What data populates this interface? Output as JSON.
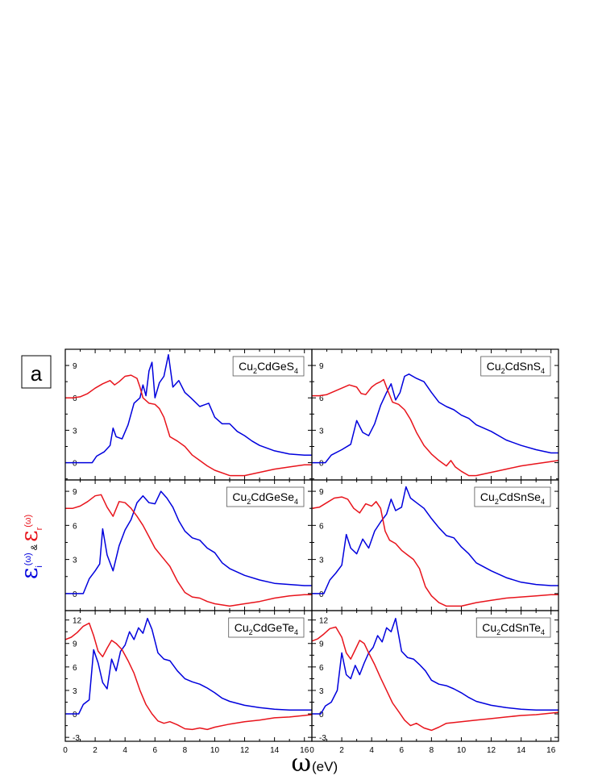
{
  "panel_letter": "a",
  "x_axis": {
    "symbol": "ω",
    "unit": "(eV)",
    "range": [
      0,
      16.5
    ],
    "ticks": [
      0,
      2,
      4,
      6,
      8,
      10,
      12,
      14,
      16
    ]
  },
  "y_axis": {
    "imag_symbol": "ε",
    "imag_sub": "i",
    "imag_arg": "(ω)",
    "joiner": "&",
    "real_symbol": "ε",
    "real_sub": "r",
    "real_arg": "(ω)"
  },
  "colors": {
    "imag": "#0000dd",
    "real": "#e8141c"
  },
  "chart_data": [
    {
      "type": "line",
      "material": {
        "prefix": "Cu",
        "sub1": "2",
        "mid": "CdGeS",
        "sub2": "4"
      },
      "ylim": [
        -1.6,
        10.5
      ],
      "yticks": [
        0,
        3,
        6,
        9
      ],
      "series": [
        {
          "key": "imag",
          "x": [
            0,
            1.8,
            2.1,
            2.6,
            3.0,
            3.2,
            3.4,
            3.8,
            4.2,
            4.6,
            5.0,
            5.2,
            5.4,
            5.6,
            5.8,
            6.0,
            6.3,
            6.6,
            6.9,
            7.2,
            7.6,
            8.0,
            8.4,
            9.0,
            9.6,
            10.0,
            10.5,
            11.0,
            11.5,
            12.0,
            12.5,
            13.0,
            14.0,
            15.0,
            16.0,
            16.5
          ],
          "y": [
            0,
            0,
            0.6,
            1.0,
            1.6,
            3.2,
            2.4,
            2.2,
            3.5,
            5.5,
            6.0,
            7.2,
            6.2,
            8.5,
            9.3,
            6.0,
            7.4,
            8.0,
            10.0,
            7.0,
            7.6,
            6.5,
            6.0,
            5.2,
            5.5,
            4.2,
            3.6,
            3.6,
            2.9,
            2.5,
            2.0,
            1.6,
            1.1,
            0.8,
            0.7,
            0.7
          ]
        },
        {
          "key": "real",
          "x": [
            0,
            0.5,
            1.0,
            1.5,
            2.0,
            2.5,
            3.0,
            3.3,
            3.6,
            4.0,
            4.4,
            4.8,
            5.0,
            5.2,
            5.6,
            6.0,
            6.3,
            6.6,
            7.0,
            7.5,
            8.0,
            8.5,
            9.0,
            9.5,
            10.0,
            11.0,
            12.0,
            13.0,
            14.0,
            15.0,
            16.0,
            16.5
          ],
          "y": [
            6.0,
            6.0,
            6.1,
            6.4,
            6.9,
            7.3,
            7.6,
            7.2,
            7.5,
            8.0,
            8.1,
            7.8,
            7.0,
            6.0,
            5.5,
            5.4,
            5.0,
            4.2,
            2.4,
            2.0,
            1.5,
            0.7,
            0.2,
            -0.3,
            -0.7,
            -1.2,
            -1.2,
            -0.9,
            -0.6,
            -0.4,
            -0.2,
            -0.2
          ]
        }
      ]
    },
    {
      "type": "line",
      "material": {
        "prefix": "Cu",
        "sub1": "2",
        "mid": "CdSnS",
        "sub2": "4"
      },
      "ylim": [
        -1.6,
        10.5
      ],
      "yticks": [
        0,
        3,
        6,
        9
      ],
      "series": [
        {
          "key": "imag",
          "x": [
            0,
            0.9,
            1.3,
            2.0,
            2.6,
            3.0,
            3.4,
            3.8,
            4.2,
            4.6,
            5.0,
            5.3,
            5.6,
            5.9,
            6.2,
            6.5,
            7.0,
            7.5,
            8.0,
            8.5,
            9.0,
            9.5,
            10.0,
            10.5,
            11.0,
            12.0,
            13.0,
            14.0,
            15.0,
            16.0,
            16.5
          ],
          "y": [
            0,
            0,
            0.7,
            1.2,
            1.7,
            3.9,
            2.8,
            2.5,
            3.6,
            5.3,
            6.5,
            7.3,
            5.8,
            6.5,
            8.0,
            8.2,
            7.8,
            7.5,
            6.5,
            5.6,
            5.2,
            4.9,
            4.4,
            4.1,
            3.5,
            2.9,
            2.1,
            1.6,
            1.2,
            0.9,
            0.9
          ]
        },
        {
          "key": "real",
          "x": [
            0,
            0.5,
            1.0,
            1.5,
            2.0,
            2.5,
            3.0,
            3.3,
            3.6,
            4.0,
            4.3,
            4.6,
            4.8,
            5.1,
            5.4,
            5.8,
            6.2,
            6.6,
            7.0,
            7.5,
            8.0,
            8.5,
            9.0,
            9.3,
            9.6,
            10.0,
            10.5,
            11.0,
            12.0,
            13.0,
            14.0,
            15.0,
            16.0,
            16.5
          ],
          "y": [
            6.2,
            6.2,
            6.3,
            6.6,
            6.9,
            7.2,
            7.0,
            6.4,
            6.3,
            7.0,
            7.3,
            7.5,
            7.7,
            6.6,
            5.6,
            5.4,
            4.9,
            4.0,
            2.8,
            1.6,
            0.8,
            0.2,
            -0.3,
            0.2,
            -0.4,
            -0.8,
            -1.2,
            -1.2,
            -0.9,
            -0.6,
            -0.3,
            -0.1,
            0.1,
            0.2
          ]
        }
      ]
    },
    {
      "type": "line",
      "material": {
        "prefix": "Cu",
        "sub1": "2",
        "mid": "CdGeSe",
        "sub2": "4"
      },
      "ylim": [
        -1.5,
        10.0
      ],
      "yticks": [
        0,
        3,
        6,
        9
      ],
      "series": [
        {
          "key": "imag",
          "x": [
            0,
            1.2,
            1.6,
            2.0,
            2.3,
            2.5,
            2.8,
            3.2,
            3.6,
            4.0,
            4.4,
            4.8,
            5.2,
            5.6,
            6.0,
            6.4,
            6.8,
            7.2,
            7.6,
            8.0,
            8.5,
            9.0,
            9.5,
            10.0,
            10.5,
            11.0,
            12.0,
            13.0,
            14.0,
            15.0,
            16.0,
            16.5
          ],
          "y": [
            0,
            0,
            1.3,
            2.0,
            2.6,
            5.7,
            3.4,
            2.0,
            4.2,
            5.6,
            6.5,
            8.0,
            8.6,
            8.0,
            7.9,
            9.0,
            8.4,
            7.6,
            6.4,
            5.5,
            4.9,
            4.7,
            4.0,
            3.6,
            2.7,
            2.2,
            1.6,
            1.2,
            0.9,
            0.8,
            0.7,
            0.7
          ]
        },
        {
          "key": "real",
          "x": [
            0,
            0.5,
            1.0,
            1.5,
            2.0,
            2.4,
            2.8,
            3.2,
            3.6,
            4.0,
            4.4,
            4.8,
            5.2,
            5.6,
            6.0,
            6.5,
            7.0,
            7.5,
            8.0,
            8.5,
            9.0,
            9.5,
            10.0,
            11.0,
            12.0,
            13.0,
            14.0,
            15.0,
            16.0,
            16.5
          ],
          "y": [
            7.5,
            7.5,
            7.7,
            8.1,
            8.6,
            8.7,
            7.6,
            6.8,
            8.1,
            8.0,
            7.5,
            6.8,
            6.0,
            5.0,
            4.0,
            3.2,
            2.4,
            1.1,
            0.1,
            -0.3,
            -0.4,
            -0.7,
            -0.9,
            -1.1,
            -0.9,
            -0.7,
            -0.4,
            -0.2,
            -0.1,
            -0.1
          ]
        }
      ]
    },
    {
      "type": "line",
      "material": {
        "prefix": "Cu",
        "sub1": "2",
        "mid": "CdSnSe",
        "sub2": "4"
      },
      "ylim": [
        -1.5,
        10.0
      ],
      "yticks": [
        0,
        3,
        6,
        9
      ],
      "series": [
        {
          "key": "imag",
          "x": [
            0,
            0.8,
            1.2,
            1.6,
            2.0,
            2.3,
            2.6,
            3.0,
            3.4,
            3.8,
            4.2,
            4.6,
            5.0,
            5.3,
            5.6,
            6.0,
            6.3,
            6.6,
            7.0,
            7.5,
            8.0,
            8.5,
            9.0,
            9.5,
            10.0,
            10.5,
            11.0,
            12.0,
            13.0,
            14.0,
            15.0,
            16.0,
            16.5
          ],
          "y": [
            0,
            0,
            1.2,
            1.8,
            2.5,
            5.2,
            4.0,
            3.5,
            4.8,
            4.0,
            5.5,
            6.3,
            7.0,
            8.3,
            7.3,
            7.6,
            9.4,
            8.4,
            8.0,
            7.5,
            6.6,
            5.8,
            5.1,
            4.9,
            4.1,
            3.5,
            2.7,
            2.0,
            1.4,
            1.0,
            0.8,
            0.7,
            0.7
          ]
        },
        {
          "key": "real",
          "x": [
            0,
            0.5,
            1.0,
            1.5,
            2.0,
            2.4,
            2.8,
            3.2,
            3.6,
            4.0,
            4.3,
            4.6,
            4.9,
            5.2,
            5.6,
            6.0,
            6.4,
            6.8,
            7.2,
            7.6,
            8.0,
            8.5,
            9.0,
            10.0,
            11.0,
            12.0,
            13.0,
            14.0,
            15.0,
            16.0,
            16.5
          ],
          "y": [
            7.5,
            7.6,
            8.0,
            8.4,
            8.5,
            8.3,
            7.5,
            7.1,
            7.9,
            7.7,
            8.1,
            7.5,
            5.5,
            4.7,
            4.4,
            3.8,
            3.4,
            3.0,
            2.2,
            0.6,
            -0.2,
            -0.8,
            -1.1,
            -1.1,
            -0.8,
            -0.6,
            -0.4,
            -0.3,
            -0.2,
            -0.1,
            -0.1
          ]
        }
      ]
    },
    {
      "type": "line",
      "material": {
        "prefix": "Cu",
        "sub1": "2",
        "mid": "CdGeTe",
        "sub2": "4"
      },
      "ylim": [
        -3.5,
        13.2
      ],
      "yticks": [
        -3,
        0,
        3,
        6,
        9,
        12
      ],
      "series": [
        {
          "key": "imag",
          "x": [
            0,
            0.9,
            1.2,
            1.6,
            1.9,
            2.2,
            2.5,
            2.8,
            3.1,
            3.4,
            3.7,
            4.0,
            4.3,
            4.6,
            4.9,
            5.2,
            5.5,
            5.8,
            6.2,
            6.6,
            7.0,
            7.5,
            8.0,
            8.5,
            9.0,
            9.5,
            10.0,
            10.5,
            11.0,
            12.0,
            13.0,
            14.0,
            15.0,
            16.0,
            16.5
          ],
          "y": [
            0,
            0,
            1.2,
            1.8,
            8.2,
            6.5,
            4.0,
            3.2,
            7.0,
            5.5,
            8.0,
            8.8,
            10.5,
            9.5,
            11.0,
            10.3,
            12.2,
            10.8,
            7.8,
            7.0,
            6.8,
            5.5,
            4.5,
            4.1,
            3.8,
            3.3,
            2.7,
            2.0,
            1.6,
            1.1,
            0.8,
            0.6,
            0.5,
            0.5,
            0.5
          ]
        },
        {
          "key": "real",
          "x": [
            0,
            0.4,
            0.8,
            1.2,
            1.6,
            1.9,
            2.2,
            2.5,
            2.8,
            3.1,
            3.4,
            3.8,
            4.2,
            4.6,
            5.0,
            5.4,
            5.8,
            6.2,
            6.6,
            7.0,
            7.5,
            8.0,
            8.5,
            9.0,
            9.5,
            10.0,
            11.0,
            12.0,
            13.0,
            14.0,
            15.0,
            16.0,
            16.5
          ],
          "y": [
            9.5,
            9.8,
            10.4,
            11.2,
            11.6,
            10.0,
            8.0,
            7.3,
            8.4,
            9.4,
            9.0,
            8.2,
            6.8,
            5.2,
            3.0,
            1.2,
            0.0,
            -0.9,
            -1.2,
            -1.0,
            -1.4,
            -1.9,
            -2.0,
            -1.8,
            -2.0,
            -1.7,
            -1.3,
            -1.0,
            -0.8,
            -0.5,
            -0.4,
            -0.2,
            -0.1
          ]
        }
      ]
    },
    {
      "type": "line",
      "material": {
        "prefix": "Cu",
        "sub1": "2",
        "mid": "CdSnTe",
        "sub2": "4"
      },
      "ylim": [
        -3.5,
        13.2
      ],
      "yticks": [
        -3,
        0,
        3,
        6,
        9,
        12
      ],
      "series": [
        {
          "key": "imag",
          "x": [
            0,
            0.6,
            0.9,
            1.3,
            1.7,
            2.0,
            2.3,
            2.6,
            2.9,
            3.2,
            3.5,
            3.8,
            4.1,
            4.4,
            4.7,
            5.0,
            5.3,
            5.6,
            6.0,
            6.4,
            6.8,
            7.2,
            7.6,
            8.0,
            8.5,
            9.0,
            9.5,
            10.0,
            10.5,
            11.0,
            12.0,
            13.0,
            14.0,
            15.0,
            16.0,
            16.5
          ],
          "y": [
            0,
            0,
            1.0,
            1.5,
            3.0,
            7.8,
            5.0,
            4.5,
            6.2,
            5.0,
            6.5,
            7.8,
            8.5,
            10.0,
            9.2,
            11.0,
            10.5,
            12.2,
            8.0,
            7.2,
            7.0,
            6.3,
            5.5,
            4.3,
            3.8,
            3.6,
            3.2,
            2.7,
            2.1,
            1.6,
            1.1,
            0.8,
            0.6,
            0.5,
            0.5,
            0.5
          ]
        },
        {
          "key": "real",
          "x": [
            0,
            0.4,
            0.8,
            1.2,
            1.6,
            2.0,
            2.3,
            2.6,
            2.9,
            3.2,
            3.5,
            3.8,
            4.2,
            4.6,
            5.0,
            5.4,
            5.8,
            6.2,
            6.6,
            7.0,
            7.5,
            8.0,
            8.5,
            9.0,
            10.0,
            11.0,
            12.0,
            13.0,
            14.0,
            15.0,
            16.0,
            16.5
          ],
          "y": [
            9.3,
            9.6,
            10.2,
            10.9,
            11.1,
            9.8,
            7.8,
            7.0,
            8.2,
            9.4,
            9.0,
            7.8,
            6.3,
            4.6,
            3.0,
            1.4,
            0.3,
            -0.8,
            -1.5,
            -1.2,
            -1.8,
            -2.1,
            -1.7,
            -1.2,
            -1.0,
            -0.8,
            -0.6,
            -0.4,
            -0.2,
            -0.1,
            0.1,
            0.2
          ]
        }
      ]
    }
  ]
}
